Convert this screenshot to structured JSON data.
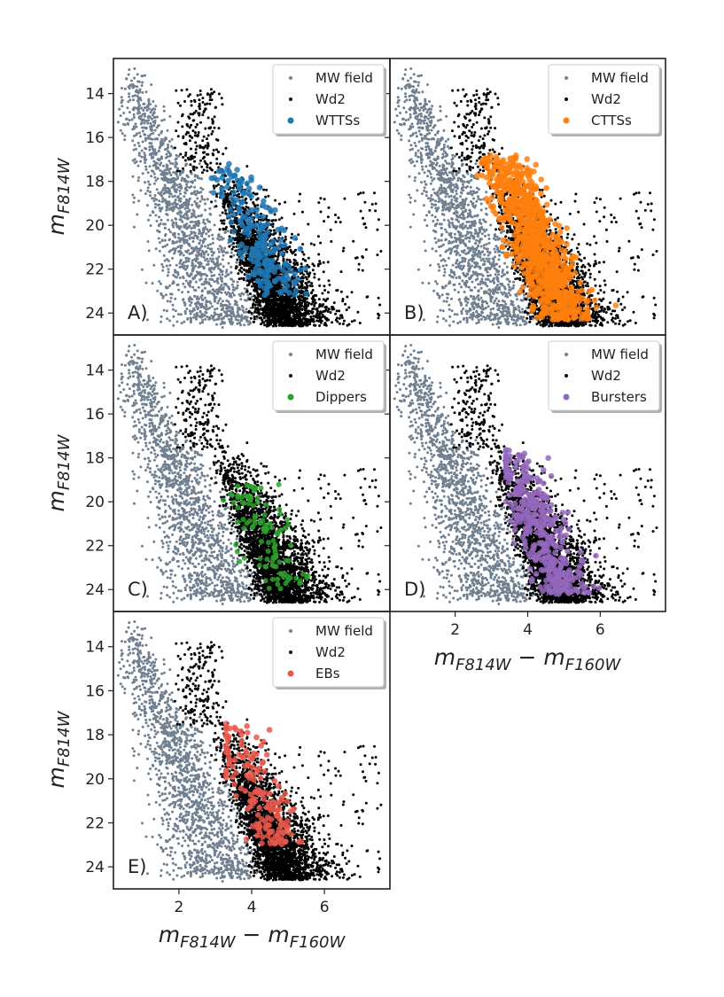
{
  "chart_data": {
    "type": "scatter",
    "layout": "3x2 grid of color-magnitude diagrams sharing axes",
    "xlabel_base": "m",
    "xlabel_sub": "F814W",
    "xlabel_minus": " − ",
    "xlabel_base2": "m",
    "xlabel_sub2": "F160W",
    "ylabel_base": "m",
    "ylabel_sub": "F814W",
    "xlim": [
      0.2,
      7.8
    ],
    "ylim": [
      25.0,
      12.4
    ],
    "x_ticks": [
      2,
      4,
      6
    ],
    "y_ticks": [
      14,
      16,
      18,
      20,
      22,
      24
    ],
    "x_tick_labels": [
      "2",
      "4",
      "6"
    ],
    "y_tick_labels": [
      "14",
      "16",
      "18",
      "20",
      "22",
      "24"
    ],
    "base_series": [
      {
        "name": "MW field",
        "color": "#708090"
      },
      {
        "name": "Wd2",
        "color": "#000000"
      }
    ],
    "panels": [
      {
        "label": "A)",
        "highlight": {
          "name": "WTTSs",
          "color": "#1f77b4"
        }
      },
      {
        "label": "B)",
        "highlight": {
          "name": "CTTSs",
          "color": "#ff7f0e"
        }
      },
      {
        "label": "C)",
        "highlight": {
          "name": "Dippers",
          "color": "#2ca02c"
        }
      },
      {
        "label": "D)",
        "highlight": {
          "name": "Bursters",
          "color": "#9467bd"
        }
      },
      {
        "label": "E)",
        "highlight": {
          "name": "EBs",
          "color": "#e8574a"
        }
      }
    ],
    "population_shapes": {
      "mw_field": {
        "x_range": [
          0.4,
          4.2
        ],
        "y_range": [
          12.8,
          24.6
        ],
        "trend": "diagonal band from (0.5,13) to (3.5,24.5)"
      },
      "wd2_upper_clump": {
        "x_range": [
          1.9,
          3.2
        ],
        "y_range": [
          13.8,
          17.5
        ]
      },
      "wd2_main": {
        "x_range": [
          2.8,
          7.7
        ],
        "y_range": [
          17.2,
          24.7
        ],
        "dense_core": [
          4.5,
          23.5
        ]
      },
      "WTTSs": {
        "x_range": [
          2.9,
          5.5
        ],
        "y_range": [
          17.2,
          23.2
        ]
      },
      "CTTSs": {
        "x_range": [
          2.5,
          6.8
        ],
        "y_range": [
          16.8,
          24.3
        ]
      },
      "Dippers": {
        "x_range": [
          3.0,
          6.8
        ],
        "y_range": [
          19.0,
          24.0
        ]
      },
      "Bursters": {
        "x_range": [
          3.4,
          6.4
        ],
        "y_range": [
          17.6,
          24.2
        ]
      },
      "EBs": {
        "x_range": [
          3.3,
          5.6
        ],
        "y_range": [
          17.4,
          23.0
        ]
      }
    }
  }
}
